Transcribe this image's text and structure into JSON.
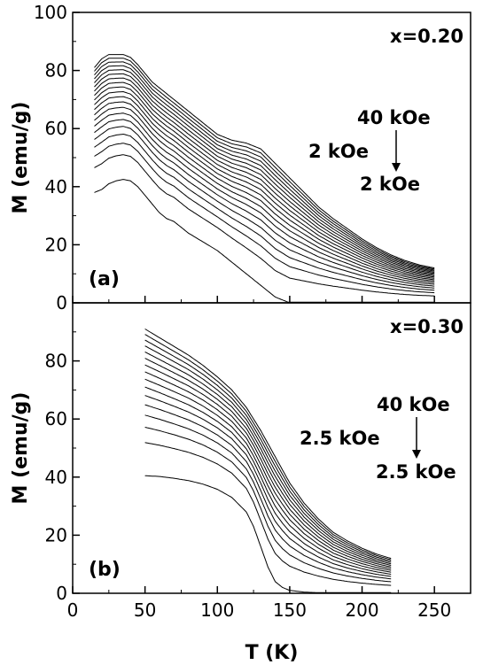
{
  "chart_data": [
    {
      "type": "line",
      "panel_label": "(a)",
      "annotation": "x=0.20",
      "field_labels": {
        "top": "40 kOe",
        "middle": "2 kOe",
        "bottom": "2 kOe"
      },
      "ylabel": "M (emu/g)",
      "xlabel": "",
      "xlim": [
        0,
        275
      ],
      "ylim": [
        0,
        100
      ],
      "yticks": [
        0,
        20,
        40,
        60,
        80,
        100
      ],
      "xticks": [
        0,
        50,
        100,
        150,
        200,
        250
      ],
      "x_range": [
        15,
        250
      ],
      "series_count": 20,
      "lowest_curve": {
        "x": [
          15,
          20,
          25,
          30,
          35,
          40,
          45,
          50,
          55,
          60,
          65,
          70,
          75,
          80,
          90,
          100,
          110,
          120,
          130,
          140,
          150
        ],
        "y": [
          38,
          39,
          41,
          42,
          42.5,
          42,
          40,
          37,
          34,
          31,
          29,
          28,
          26,
          24,
          21,
          18,
          14,
          10,
          6,
          2,
          0
        ]
      },
      "highest_curve": {
        "x": [
          15,
          20,
          25,
          30,
          35,
          40,
          45,
          50,
          55,
          60,
          65,
          70,
          75,
          80,
          90,
          100,
          110,
          120,
          130,
          140,
          150,
          160,
          170,
          180,
          190,
          200,
          210,
          220,
          230,
          240,
          250
        ],
        "y": [
          81,
          84,
          85.5,
          85.5,
          85.5,
          84.5,
          82,
          79,
          76,
          74,
          72,
          70,
          68,
          66,
          62,
          58,
          56,
          55,
          53,
          48,
          43,
          38,
          33,
          29,
          25.5,
          22,
          19,
          16.5,
          14.5,
          13,
          12
        ]
      }
    },
    {
      "type": "line",
      "panel_label": "(b)",
      "annotation": "x=0.30",
      "field_labels": {
        "top": "40 kOe",
        "middle": "2.5 kOe",
        "bottom": "2.5 kOe"
      },
      "ylabel": "M (emu/g)",
      "xlabel": "T (K)",
      "xlim": [
        0,
        275
      ],
      "ylim": [
        0,
        100
      ],
      "yticks": [
        0,
        20,
        40,
        60,
        80
      ],
      "xticks": [
        0,
        50,
        100,
        150,
        200,
        250
      ],
      "x_range": [
        50,
        220
      ],
      "series_count": 16,
      "lowest_curve": {
        "x": [
          50,
          60,
          70,
          80,
          90,
          100,
          110,
          120,
          125,
          130,
          135,
          140,
          145,
          150,
          160,
          170,
          180,
          190,
          200,
          210,
          220
        ],
        "y": [
          40.5,
          40.2,
          39.6,
          38.8,
          37.6,
          35.8,
          33,
          28,
          23,
          16,
          9,
          4,
          2,
          1,
          0.4,
          0.2,
          0.1,
          0,
          0,
          0,
          0
        ]
      },
      "highest_curve": {
        "x": [
          50,
          60,
          70,
          80,
          90,
          100,
          110,
          120,
          130,
          140,
          150,
          160,
          170,
          180,
          190,
          200,
          210,
          220
        ],
        "y": [
          91,
          88,
          85,
          82,
          78.5,
          74.5,
          70,
          64,
          56,
          47,
          38,
          31,
          25.5,
          21,
          18,
          15.5,
          13.5,
          12
        ]
      }
    }
  ]
}
